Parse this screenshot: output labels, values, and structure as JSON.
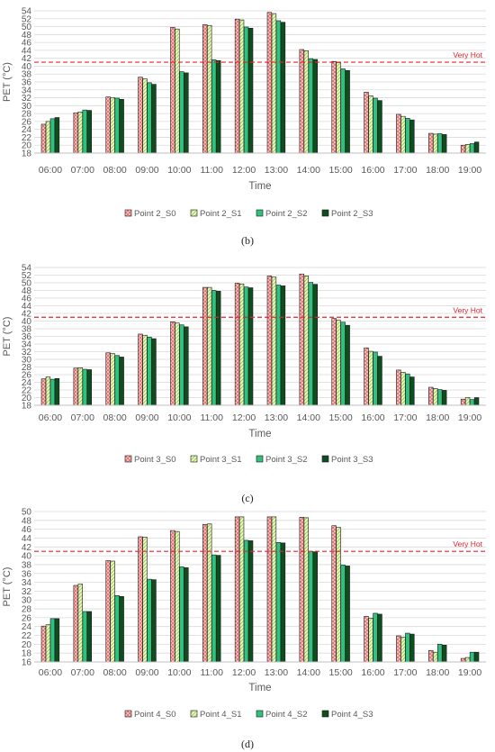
{
  "colors": {
    "s0": "#f4cccc",
    "s0_hatch": "#e06666",
    "s1": "#eef7c8",
    "s1_hatch": "#9acd5a",
    "s2": "#2ec27e",
    "s3": "#0f4d1f",
    "threshold": "#e8242a",
    "grid": "#d9d9d9",
    "axis_text": "#595959"
  },
  "chart_data": [
    {
      "type": "bar",
      "caption": "(b)",
      "xlabel": "Time",
      "ylabel": "PET (°C)",
      "ylim": [
        18,
        54
      ],
      "yticks": [
        18,
        20,
        22,
        24,
        26,
        28,
        30,
        32,
        34,
        36,
        38,
        40,
        42,
        44,
        46,
        48,
        50,
        52,
        54
      ],
      "threshold": {
        "value": 41,
        "label": "Very Hot"
      },
      "categories": [
        "06:00",
        "07:00",
        "08:00",
        "09:00",
        "10:00",
        "11:00",
        "12:00",
        "13:00",
        "14:00",
        "15:00",
        "16:00",
        "17:00",
        "18:00",
        "19:00"
      ],
      "series": [
        {
          "name": "Point 2_S0",
          "values": [
            25.3,
            28.2,
            32.2,
            37.2,
            49.8,
            50.5,
            51.9,
            53.6,
            44.2,
            41.2,
            33.4,
            27.8,
            23.0,
            20.0
          ]
        },
        {
          "name": "Point 2_S1",
          "values": [
            26.0,
            28.4,
            32.0,
            36.8,
            49.4,
            50.3,
            51.7,
            53.3,
            43.9,
            40.9,
            32.5,
            27.3,
            22.8,
            20.2
          ]
        },
        {
          "name": "Point 2_S2",
          "values": [
            26.7,
            28.9,
            31.9,
            35.8,
            38.6,
            41.6,
            49.9,
            51.5,
            41.9,
            39.3,
            31.9,
            26.8,
            22.9,
            20.4
          ]
        },
        {
          "name": "Point 2_S3",
          "values": [
            27.0,
            28.8,
            31.6,
            35.4,
            38.3,
            41.4,
            49.6,
            51.1,
            41.7,
            38.9,
            31.3,
            26.4,
            22.7,
            20.8
          ]
        }
      ]
    },
    {
      "type": "bar",
      "caption": "(c)",
      "xlabel": "Time",
      "ylabel": "PET (°C)",
      "ylim": [
        18,
        54
      ],
      "yticks": [
        18,
        20,
        22,
        24,
        26,
        28,
        30,
        32,
        34,
        36,
        38,
        40,
        42,
        44,
        46,
        48,
        50,
        52,
        54
      ],
      "threshold": {
        "value": 41,
        "label": "Very Hot"
      },
      "categories": [
        "06:00",
        "07:00",
        "08:00",
        "09:00",
        "10:00",
        "11:00",
        "12:00",
        "13:00",
        "14:00",
        "15:00",
        "16:00",
        "17:00",
        "18:00",
        "19:00"
      ],
      "series": [
        {
          "name": "Point 3_S0",
          "values": [
            24.9,
            27.7,
            31.7,
            36.6,
            39.8,
            48.8,
            49.9,
            51.8,
            52.3,
            40.7,
            33.0,
            27.2,
            22.7,
            19.6
          ]
        },
        {
          "name": "Point 3_S1",
          "values": [
            25.4,
            27.8,
            31.5,
            36.3,
            39.5,
            48.8,
            49.7,
            51.5,
            51.8,
            40.2,
            32.1,
            26.6,
            22.4,
            20.0
          ]
        },
        {
          "name": "Point 3_S2",
          "values": [
            24.8,
            27.4,
            31.0,
            35.8,
            39.0,
            48.0,
            48.9,
            49.4,
            50.1,
            39.7,
            31.9,
            26.2,
            22.1,
            19.5
          ]
        },
        {
          "name": "Point 3_S3",
          "values": [
            25.0,
            27.3,
            30.6,
            35.4,
            38.5,
            47.8,
            48.7,
            49.2,
            49.6,
            38.9,
            30.8,
            25.4,
            21.9,
            20.0
          ]
        }
      ]
    },
    {
      "type": "bar",
      "caption": "(d)",
      "xlabel": "Time",
      "ylabel": "PET (°C)",
      "ylim": [
        16,
        50
      ],
      "yticks": [
        16,
        18,
        20,
        22,
        24,
        26,
        28,
        30,
        32,
        34,
        36,
        38,
        40,
        42,
        44,
        46,
        48,
        50
      ],
      "threshold": {
        "value": 41,
        "label": "Very Hot"
      },
      "categories": [
        "06:00",
        "07:00",
        "08:00",
        "09:00",
        "10:00",
        "11:00",
        "12:00",
        "13:00",
        "14:00",
        "15:00",
        "16:00",
        "17:00",
        "18:00",
        "19:00"
      ],
      "series": [
        {
          "name": "Point 4_S0",
          "values": [
            24.1,
            33.3,
            38.9,
            44.3,
            45.7,
            47.1,
            48.8,
            48.8,
            48.7,
            46.8,
            26.3,
            21.9,
            18.6,
            16.8
          ]
        },
        {
          "name": "Point 4_S1",
          "values": [
            24.4,
            33.6,
            38.8,
            44.2,
            45.5,
            47.2,
            48.8,
            48.8,
            48.6,
            46.4,
            25.9,
            21.6,
            18.2,
            17.0
          ]
        },
        {
          "name": "Point 4_S2",
          "values": [
            25.8,
            27.4,
            31.0,
            34.7,
            37.5,
            40.2,
            43.5,
            43.0,
            41.0,
            37.9,
            27.0,
            22.5,
            20.0,
            18.2
          ]
        },
        {
          "name": "Point 4_S3",
          "values": [
            25.8,
            27.4,
            30.8,
            34.6,
            37.3,
            40.1,
            43.4,
            42.9,
            40.9,
            37.7,
            26.8,
            22.3,
            19.8,
            18.2
          ]
        }
      ]
    }
  ]
}
